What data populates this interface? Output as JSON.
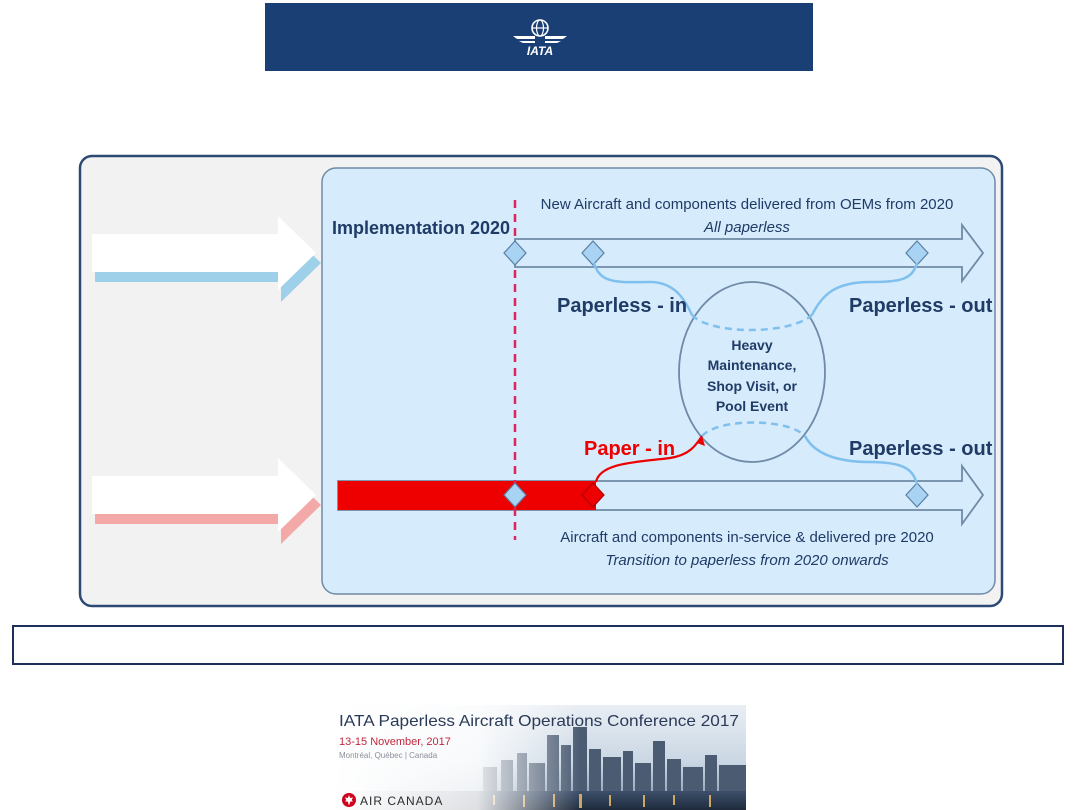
{
  "header": {
    "logo_text": "IATA",
    "logo_icon": "iata-globe-wings-logo"
  },
  "diagram": {
    "implementation_label": "Implementation 2020",
    "top_track_title": "New Aircraft and components delivered from OEMs from 2020",
    "top_track_subtitle": "All paperless",
    "paperless_in_label": "Paperless - in",
    "paperless_out_top_label": "Paperless - out",
    "event_lines": [
      "Heavy",
      "Maintenance,",
      "Shop Visit, or",
      "Pool Event"
    ],
    "paper_in_label": "Paper - in",
    "paperless_out_bottom_label": "Paperless - out",
    "bottom_track_title": "Aircraft and components in-service & delivered pre 2020",
    "bottom_track_subtitle": "Transition to paperless from 2020 onwards",
    "colors": {
      "panel_fill": "#d6ebfb",
      "panel_border": "#2c4a74",
      "track_stroke": "#6f8aa6",
      "milestone_fill": "#a9d3f2",
      "paper_red": "#ee0000",
      "flow_blue": "#7fc0ee",
      "dashed_line": "#e0245e",
      "outer_bg": "#f2f2f2",
      "outer_border": "#2c4a74"
    }
  },
  "caption": {
    "text": ""
  },
  "conference": {
    "title": "IATA Paperless Aircraft Operations Conference 2017",
    "dates": "13-15 November, 2017",
    "location": "Montréal, Québec | Canada",
    "sponsor": "AIR CANADA",
    "sponsor_icon": "maple-leaf-icon"
  }
}
